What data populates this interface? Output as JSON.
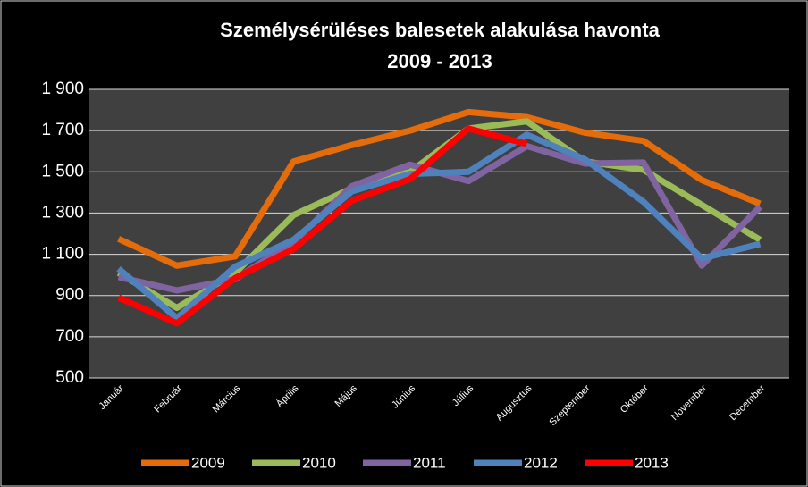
{
  "chart_data": {
    "type": "line",
    "title": "Személysérüléses balesetek alakulása havonta",
    "subtitle": "2009 - 2013",
    "categories": [
      "Január",
      "Február",
      "Március",
      "Április",
      "Május",
      "Június",
      "Július",
      "Augusztus",
      "Szeptember",
      "Október",
      "November",
      "December"
    ],
    "series": [
      {
        "name": "2009",
        "color": "#e46c0a",
        "values": [
          1175,
          1045,
          1090,
          1550,
          1630,
          1700,
          1790,
          1765,
          1690,
          1650,
          1460,
          1345
        ]
      },
      {
        "name": "2010",
        "color": "#9bbb59",
        "values": [
          1010,
          840,
          1010,
          1290,
          1420,
          1500,
          1710,
          1745,
          1550,
          1510,
          1340,
          1170
        ]
      },
      {
        "name": "2011",
        "color": "#8064a2",
        "values": [
          990,
          925,
          980,
          1160,
          1430,
          1535,
          1455,
          1625,
          1540,
          1545,
          1045,
          1330
        ]
      },
      {
        "name": "2012",
        "color": "#4f81bd",
        "values": [
          1030,
          790,
          1040,
          1170,
          1405,
          1490,
          1500,
          1680,
          1560,
          1355,
          1080,
          1150
        ]
      },
      {
        "name": "2013",
        "color": "#ff0000",
        "values": [
          890,
          765,
          985,
          1125,
          1360,
          1465,
          1710,
          1635,
          null,
          null,
          null,
          null
        ]
      }
    ],
    "ylim": [
      500,
      1900
    ],
    "yticks": [
      {
        "value": 500,
        "label": "500"
      },
      {
        "value": 700,
        "label": "700"
      },
      {
        "value": 900,
        "label": "900"
      },
      {
        "value": 1100,
        "label": "1 100"
      },
      {
        "value": 1300,
        "label": "1 300"
      },
      {
        "value": 1500,
        "label": "1 500"
      },
      {
        "value": 1700,
        "label": "1 700"
      },
      {
        "value": 1900,
        "label": "1 900"
      }
    ],
    "grid": true
  }
}
